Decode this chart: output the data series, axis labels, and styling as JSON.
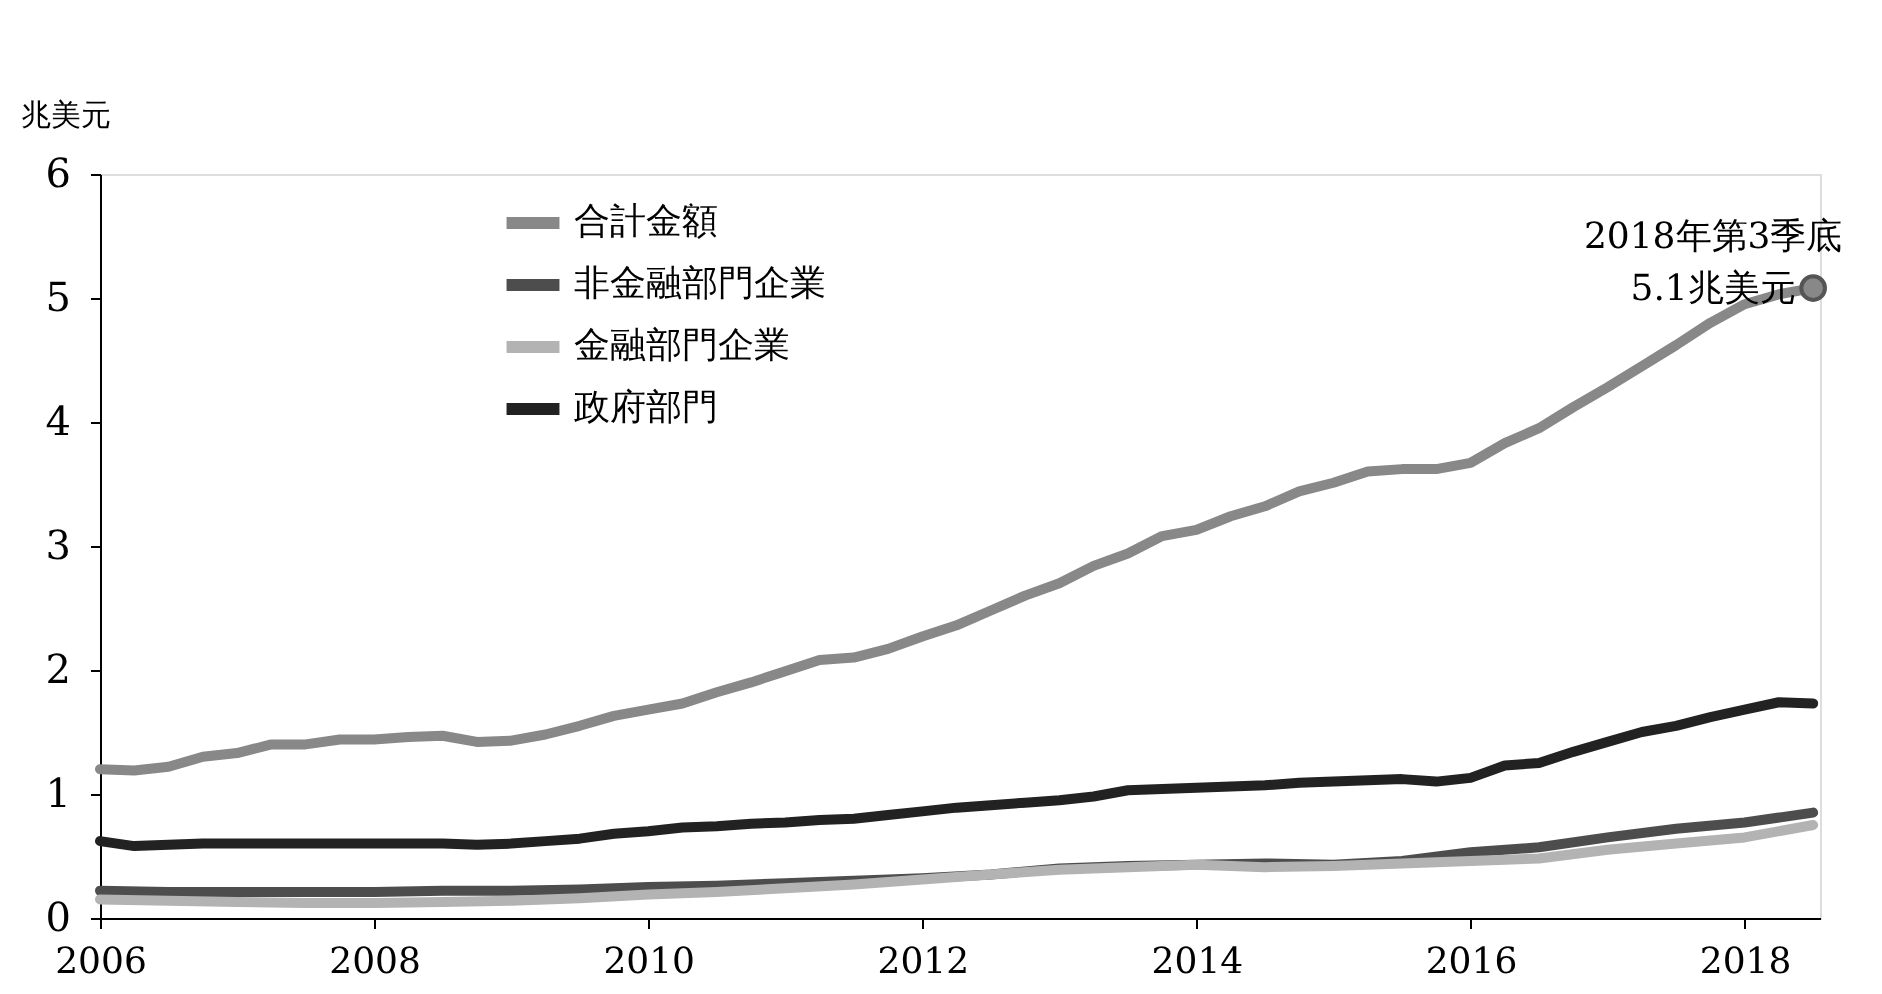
{
  "chart_data": {
    "type": "line",
    "ylabel": "兆美元",
    "xlim": [
      2006,
      2018.55
    ],
    "xticks": [
      2006,
      2008,
      2010,
      2012,
      2014,
      2016,
      2018
    ],
    "ylim": [
      0,
      6
    ],
    "yticks": [
      0,
      1,
      2,
      3,
      4,
      5,
      6
    ],
    "grid": false,
    "legend": "top left",
    "line_style": "solid",
    "marker": "none",
    "series": [
      {
        "name": "合計金額",
        "color": "#888888",
        "x": [
          2006,
          2006.25,
          2006.5,
          2006.75,
          2007,
          2007.25,
          2007.5,
          2007.75,
          2008,
          2008.25,
          2008.5,
          2008.75,
          2009,
          2009.25,
          2009.5,
          2009.75,
          2010,
          2010.25,
          2010.5,
          2010.75,
          2011,
          2011.25,
          2011.5,
          2011.75,
          2012,
          2012.25,
          2012.5,
          2012.75,
          2013,
          2013.25,
          2013.5,
          2013.75,
          2014,
          2014.25,
          2014.5,
          2014.75,
          2015,
          2015.25,
          2015.5,
          2015.75,
          2016,
          2016.25,
          2016.5,
          2016.75,
          2017,
          2017.25,
          2017.5,
          2017.75,
          2018,
          2018.25,
          2018.5
        ],
        "values": [
          1.2,
          1.19,
          1.22,
          1.3,
          1.33,
          1.4,
          1.4,
          1.44,
          1.44,
          1.46,
          1.47,
          1.42,
          1.43,
          1.48,
          1.55,
          1.63,
          1.68,
          1.73,
          1.82,
          1.9,
          1.99,
          2.08,
          2.1,
          2.17,
          2.27,
          2.36,
          2.48,
          2.6,
          2.7,
          2.84,
          2.94,
          3.08,
          3.13,
          3.24,
          3.32,
          3.44,
          3.51,
          3.6,
          3.62,
          3.62,
          3.67,
          3.83,
          3.95,
          4.12,
          4.28,
          4.45,
          4.62,
          4.8,
          4.95,
          5.03,
          5.08
        ]
      },
      {
        "name": "非金融部門企業",
        "color": "#4d4d4d",
        "x": [
          2006,
          2006.5,
          2007,
          2007.5,
          2008,
          2008.5,
          2009,
          2009.5,
          2010,
          2010.5,
          2011,
          2011.5,
          2012,
          2012.5,
          2013,
          2013.5,
          2014,
          2014.5,
          2015,
          2015.5,
          2016,
          2016.5,
          2017,
          2017.5,
          2018,
          2018.5
        ],
        "values": [
          0.22,
          0.21,
          0.21,
          0.21,
          0.21,
          0.22,
          0.22,
          0.23,
          0.25,
          0.26,
          0.28,
          0.3,
          0.32,
          0.35,
          0.4,
          0.42,
          0.43,
          0.44,
          0.43,
          0.46,
          0.53,
          0.57,
          0.65,
          0.72,
          0.77,
          0.85
        ]
      },
      {
        "name": "金融部門企業",
        "color": "#b3b3b3",
        "x": [
          2006,
          2006.5,
          2007,
          2007.5,
          2008,
          2008.5,
          2009,
          2009.5,
          2010,
          2010.5,
          2011,
          2011.5,
          2012,
          2012.5,
          2013,
          2013.5,
          2014,
          2014.5,
          2015,
          2015.5,
          2016,
          2016.5,
          2017,
          2017.5,
          2018,
          2018.5
        ],
        "values": [
          0.15,
          0.14,
          0.13,
          0.12,
          0.12,
          0.13,
          0.14,
          0.16,
          0.19,
          0.21,
          0.24,
          0.27,
          0.31,
          0.35,
          0.39,
          0.41,
          0.43,
          0.41,
          0.42,
          0.44,
          0.46,
          0.48,
          0.55,
          0.6,
          0.65,
          0.75
        ]
      },
      {
        "name": "政府部門",
        "color": "#222222",
        "x": [
          2006,
          2006.25,
          2006.5,
          2006.75,
          2007,
          2007.25,
          2007.5,
          2007.75,
          2008,
          2008.25,
          2008.5,
          2008.75,
          2009,
          2009.25,
          2009.5,
          2009.75,
          2010,
          2010.25,
          2010.5,
          2010.75,
          2011,
          2011.25,
          2011.5,
          2011.75,
          2012,
          2012.25,
          2012.5,
          2012.75,
          2013,
          2013.25,
          2013.5,
          2013.75,
          2014,
          2014.25,
          2014.5,
          2014.75,
          2015,
          2015.25,
          2015.5,
          2015.75,
          2016,
          2016.25,
          2016.5,
          2016.75,
          2017,
          2017.25,
          2017.5,
          2017.75,
          2018,
          2018.25,
          2018.5
        ],
        "values": [
          0.62,
          0.58,
          0.59,
          0.6,
          0.6,
          0.6,
          0.6,
          0.6,
          0.6,
          0.6,
          0.6,
          0.59,
          0.6,
          0.62,
          0.64,
          0.68,
          0.7,
          0.73,
          0.74,
          0.76,
          0.77,
          0.79,
          0.8,
          0.83,
          0.86,
          0.89,
          0.91,
          0.93,
          0.95,
          0.98,
          1.03,
          1.04,
          1.05,
          1.06,
          1.07,
          1.09,
          1.1,
          1.11,
          1.12,
          1.1,
          1.13,
          1.23,
          1.25,
          1.34,
          1.42,
          1.5,
          1.55,
          1.62,
          1.68,
          1.74,
          1.73
        ]
      }
    ],
    "annotations": [
      {
        "text": "2018年第3季底\n5.1兆美元",
        "x": 2018.5,
        "y": 5.08
      }
    ]
  }
}
